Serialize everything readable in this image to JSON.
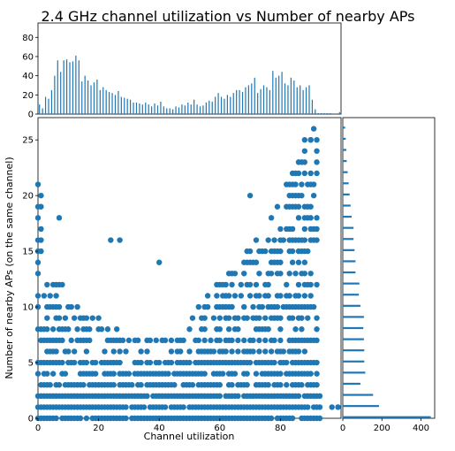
{
  "chart_data": {
    "type": "scatter",
    "title": "2.4 GHz channel utilization vs Number of nearby APs",
    "xlabel": "Channel utilization",
    "ylabel": "Number of nearby APs (on the same channel)",
    "xlim": [
      0,
      100
    ],
    "ylim": [
      0,
      27
    ],
    "x_ticks": [
      0,
      20,
      40,
      60,
      80
    ],
    "y_ticks": [
      0,
      5,
      10,
      15,
      20,
      25
    ],
    "color": "#1f77b4",
    "top_histogram": {
      "ylim": [
        0,
        95
      ],
      "y_ticks": [
        0,
        20,
        40,
        60,
        80
      ],
      "bins_x": [
        0.5,
        1.5,
        2.5,
        3.5,
        4.5,
        5.5,
        6.5,
        7.5,
        8.5,
        9.5,
        10.5,
        11.5,
        12.5,
        13.5,
        14.5,
        15.5,
        16.5,
        17.5,
        18.5,
        19.5,
        20.5,
        21.5,
        22.5,
        23.5,
        24.5,
        25.5,
        26.5,
        27.5,
        28.5,
        29.5,
        30.5,
        31.5,
        32.5,
        33.5,
        34.5,
        35.5,
        36.5,
        37.5,
        38.5,
        39.5,
        40.5,
        41.5,
        42.5,
        43.5,
        44.5,
        45.5,
        46.5,
        47.5,
        48.5,
        49.5,
        50.5,
        51.5,
        52.5,
        53.5,
        54.5,
        55.5,
        56.5,
        57.5,
        58.5,
        59.5,
        60.5,
        61.5,
        62.5,
        63.5,
        64.5,
        65.5,
        66.5,
        67.5,
        68.5,
        69.5,
        70.5,
        71.5,
        72.5,
        73.5,
        74.5,
        75.5,
        76.5,
        77.5,
        78.5,
        79.5,
        80.5,
        81.5,
        82.5,
        83.5,
        84.5,
        85.5,
        86.5,
        87.5,
        88.5,
        89.5,
        90.5,
        91.5,
        92.5,
        93.5,
        94.5,
        95.5,
        96.5,
        97.5,
        98.5,
        99.5
      ],
      "counts": [
        10,
        6,
        18,
        16,
        25,
        40,
        56,
        44,
        56,
        57,
        54,
        55,
        61,
        56,
        34,
        40,
        35,
        30,
        33,
        36,
        25,
        28,
        25,
        23,
        22,
        20,
        24,
        18,
        17,
        16,
        15,
        12,
        12,
        11,
        10,
        12,
        10,
        8,
        11,
        9,
        13,
        8,
        6,
        6,
        5,
        8,
        7,
        10,
        9,
        12,
        10,
        15,
        10,
        8,
        9,
        12,
        14,
        13,
        18,
        22,
        18,
        16,
        20,
        18,
        22,
        25,
        25,
        23,
        28,
        30,
        32,
        38,
        22,
        26,
        30,
        28,
        25,
        45,
        38,
        40,
        44,
        32,
        30,
        38,
        35,
        28,
        30,
        25,
        28,
        30,
        15,
        5,
        1,
        1,
        1,
        1,
        1,
        0,
        0,
        2
      ]
    },
    "right_histogram": {
      "xlim": [
        0,
        470
      ],
      "x_ticks": [
        0,
        200,
        400
      ],
      "bins_y": [
        0,
        1,
        2,
        3,
        4,
        5,
        6,
        7,
        8,
        9,
        10,
        11,
        12,
        13,
        14,
        15,
        16,
        17,
        18,
        19,
        20,
        21,
        22,
        23,
        24,
        25,
        26
      ],
      "counts": [
        450,
        185,
        155,
        90,
        115,
        110,
        110,
        108,
        105,
        108,
        90,
        82,
        85,
        65,
        65,
        60,
        55,
        55,
        45,
        40,
        35,
        30,
        25,
        20,
        18,
        15,
        12
      ]
    },
    "scatter_generator": "grid-sample"
  }
}
